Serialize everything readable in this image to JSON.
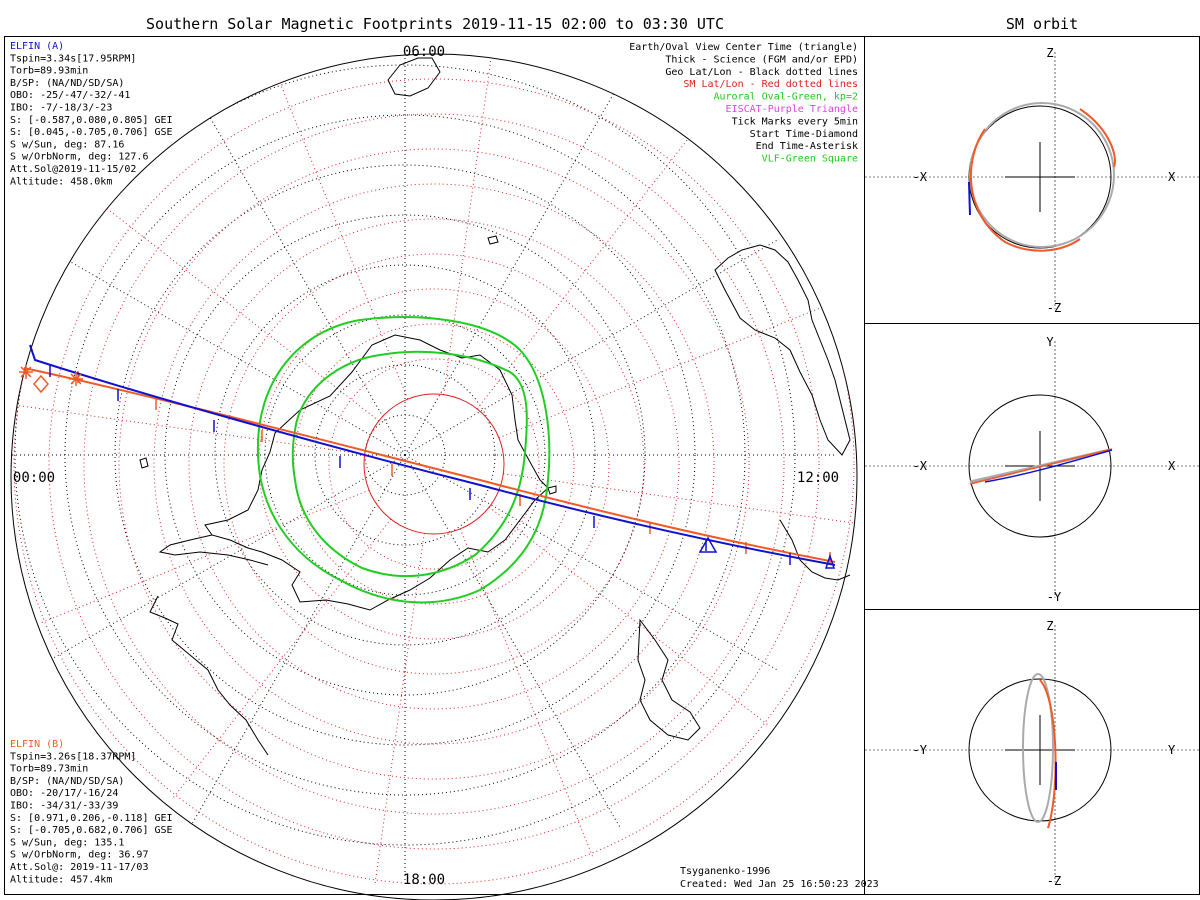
{
  "main_title": "Southern Solar Magnetic Footprints 2019-11-15 02:00 to 03:30 UTC",
  "side_title": "SM orbit",
  "clock_labels": {
    "top": "06:00",
    "left": "00:00",
    "right": "12:00",
    "bottom": "18:00"
  },
  "colors": {
    "sat_a": "#1010d0",
    "sat_b": "#f05a28",
    "oval": "#22cc22",
    "geo": "#000000",
    "sm": "#e02020",
    "eiscat": "#dd44dd",
    "orbit_gray": "#aaaaaa"
  },
  "sat_a_info": {
    "name": "ELFIN (A)",
    "lines": [
      "Tspin=3.34s[17.95RPM]",
      "Torb=89.93min",
      "B/SP: (NA/ND/SD/SA)",
      "OBO: -25/-47/-32/-41",
      "IBO: -7/-18/3/-23",
      "S: [-0.587,0.080,0.805] GEI",
      "S: [0.045,-0.705,0.706] GSE",
      "S w/Sun, deg: 87.16",
      "S w/OrbNorm, deg: 127.6",
      "Att.Sol@2019-11-15/02",
      "Altitude: 458.0km"
    ]
  },
  "sat_b_info": {
    "name": "ELFIN (B)",
    "lines": [
      "Tspin=3.26s[18.37RPM]",
      "Torb=89.73min",
      "B/SP: (NA/ND/SD/SA)",
      "OBO: -20/17/-16/24",
      "IBO: -34/31/-33/39",
      "S: [0.971,0.206,-0.118] GEI",
      "S: [-0.705,0.682,0.706] GSE",
      "S w/Sun, deg: 135.1",
      "S w/OrbNorm, deg: 36.97",
      "Att.Sol@: 2019-11-17/03",
      "Altitude: 457.4km"
    ]
  },
  "legend": [
    {
      "text": "Earth/Oval View Center Time (triangle)",
      "color": "#000000"
    },
    {
      "text": "Thick - Science (FGM and/or EPD)",
      "color": "#000000"
    },
    {
      "text": "Geo Lat/Lon - Black dotted lines",
      "color": "#000000"
    },
    {
      "text": "SM Lat/Lon - Red dotted lines",
      "color": "#e02020"
    },
    {
      "text": "Auroral Oval-Green, kp=2",
      "color": "#22cc22"
    },
    {
      "text": "EISCAT-Purple Triangle",
      "color": "#dd44dd"
    },
    {
      "text": "Tick Marks every 5min",
      "color": "#000000"
    },
    {
      "text": "Start Time-Diamond",
      "color": "#000000"
    },
    {
      "text": "End Time-Asterisk",
      "color": "#000000"
    },
    {
      "text": "VLF-Green Square",
      "color": "#22cc22"
    }
  ],
  "footer": {
    "model": "Tsyganenko-1996",
    "created": "Created: Wed Jan 25 16:50:23 2023"
  },
  "panels": [
    {
      "top": "Z",
      "bottom": "-Z",
      "left": "-X",
      "right": "X"
    },
    {
      "top": "Y",
      "bottom": "-Y",
      "left": "-X",
      "right": "X"
    },
    {
      "top": "Z",
      "bottom": "-Z",
      "left": "-Y",
      "right": "Y"
    }
  ]
}
